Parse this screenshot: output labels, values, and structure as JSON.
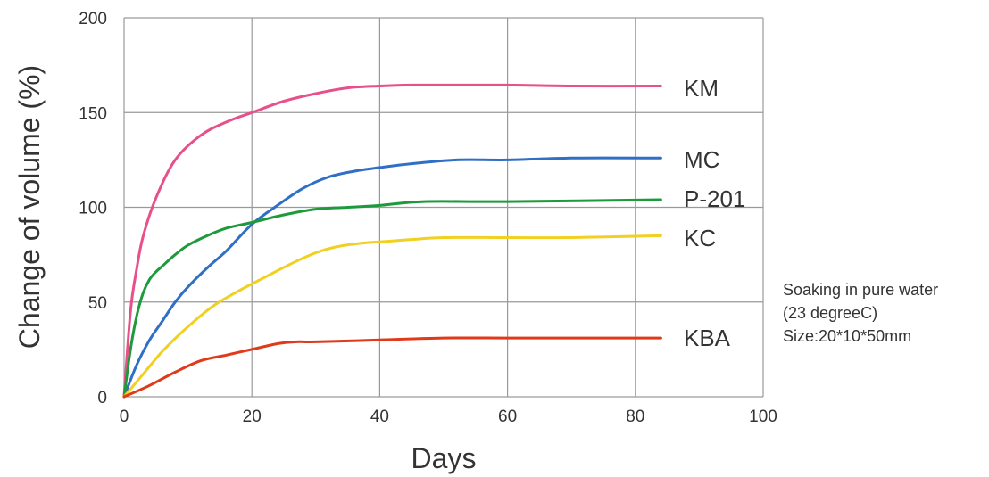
{
  "chart_data": {
    "type": "line",
    "title": "",
    "xlabel": "Days",
    "ylabel": "Change of volume (%)",
    "xlim": [
      0,
      100
    ],
    "ylim": [
      0,
      200
    ],
    "xticks": [
      0,
      20,
      40,
      60,
      80,
      100
    ],
    "yticks": [
      0,
      50,
      100,
      150,
      200
    ],
    "grid": true,
    "legend": "inline-right",
    "series": [
      {
        "name": "KM",
        "color": "#e8508a",
        "x": [
          0,
          1,
          2,
          3,
          5,
          8,
          12,
          16,
          20,
          25,
          30,
          35,
          40,
          45,
          50,
          60,
          70,
          84
        ],
        "y": [
          0,
          45,
          68,
          85,
          105,
          125,
          138,
          145,
          150,
          156,
          160,
          163,
          164,
          164.5,
          164.5,
          164.5,
          164,
          164
        ]
      },
      {
        "name": "MC",
        "color": "#2f6fc6",
        "x": [
          0,
          2,
          4,
          6,
          8,
          10,
          13,
          16,
          20,
          24,
          28,
          32,
          36,
          40,
          45,
          52,
          60,
          70,
          84
        ],
        "y": [
          0,
          17,
          30,
          40,
          50,
          58,
          68,
          77,
          91,
          101,
          110,
          116,
          119,
          121,
          123,
          125,
          125,
          126,
          126
        ]
      },
      {
        "name": "P-201",
        "color": "#1e9a3c",
        "x": [
          0,
          1,
          2,
          3,
          4,
          5,
          6,
          8,
          10,
          13,
          16,
          20,
          25,
          30,
          35,
          40,
          47,
          60,
          84
        ],
        "y": [
          0,
          25,
          43,
          55,
          62,
          66,
          69,
          75,
          80,
          85,
          89,
          92,
          96,
          99,
          100,
          101,
          103,
          103,
          104
        ]
      },
      {
        "name": "KC",
        "color": "#f0d020",
        "x": [
          0,
          3,
          6,
          10,
          14,
          18,
          22,
          26,
          30,
          33,
          37,
          41,
          45,
          50,
          60,
          70,
          84
        ],
        "y": [
          0,
          12,
          24,
          37,
          48,
          56,
          63,
          70,
          76,
          79,
          81,
          82,
          83,
          84,
          84,
          84,
          85
        ]
      },
      {
        "name": "KBA",
        "color": "#e03a1a",
        "x": [
          0,
          4,
          8,
          12,
          16,
          20,
          24,
          27,
          30,
          40,
          50,
          60,
          70,
          84
        ],
        "y": [
          0,
          6,
          13,
          19,
          22,
          25,
          28,
          29,
          29,
          30,
          31,
          31,
          31,
          31
        ]
      }
    ],
    "annotation": [
      "Soaking in pure water",
      "(23 degreeC)",
      "Size:20*10*50mm"
    ]
  }
}
